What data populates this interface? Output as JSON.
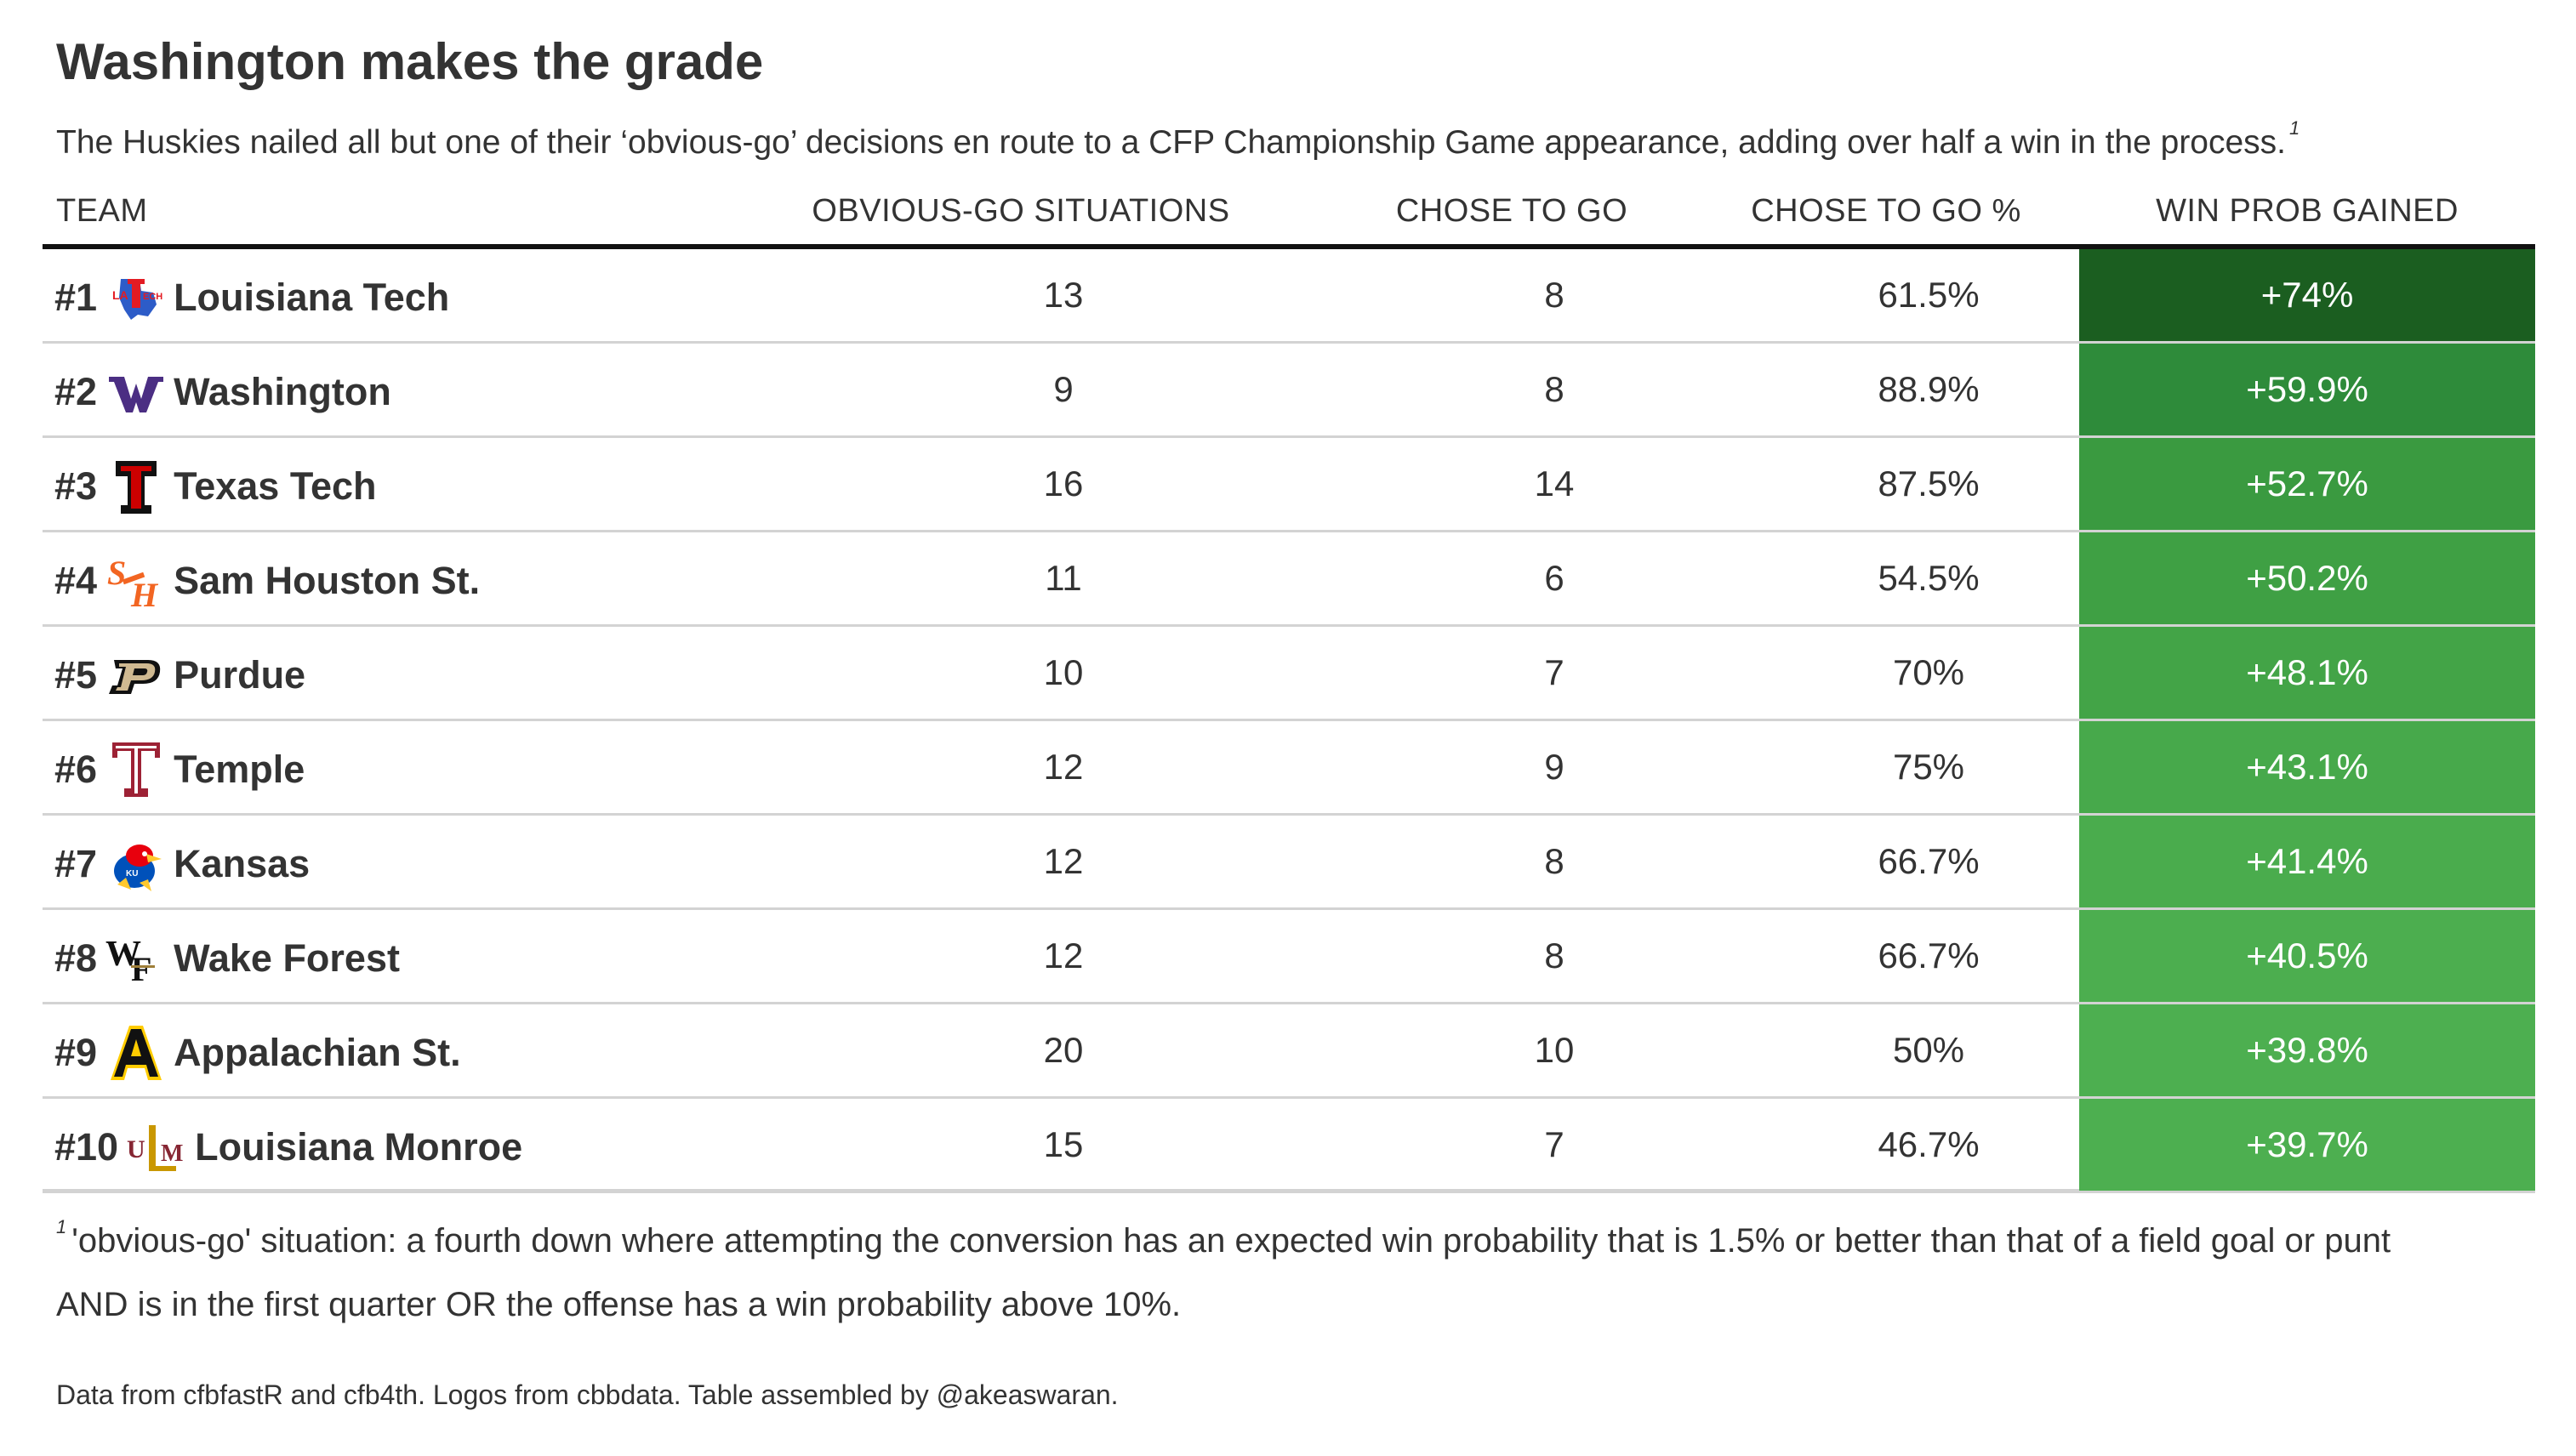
{
  "title": "Washington makes the grade",
  "subtitle": "The Huskies nailed all but one of their ‘obvious-go’ decisions en route to a CFP Championship Game appearance, adding over half a win in the process.",
  "subtitle_footnote_marker": "1",
  "columns": {
    "team": "TEAM",
    "situations": "OBVIOUS-GO SITUATIONS",
    "chose_to_go": "CHOSE TO GO",
    "chose_to_go_pct": "CHOSE TO GO %",
    "win_prob_gained": "WIN PROB GAINED"
  },
  "footnote": {
    "marker": "1",
    "line1": "'obvious-go' situation: a fourth down where attempting the conversion has an expected win probability that is 1.5% or better than that of a field goal or punt",
    "line2": "AND is in the first quarter OR the offense has a win probability above 10%."
  },
  "source": "Data from cfbfastR and cfb4th. Logos from cbbdata. Table assembled by @akeaswaran.",
  "chart_data": {
    "type": "table",
    "columns": [
      "TEAM",
      "OBVIOUS-GO SITUATIONS",
      "CHOSE TO GO",
      "CHOSE TO GO %",
      "WIN PROB GAINED"
    ],
    "rows": [
      {
        "rank": "#1",
        "team": "Louisiana Tech",
        "logo": "la-tech-logo",
        "situations": "13",
        "chose_to_go": "8",
        "chose_to_go_pct": "61.5%",
        "win_prob_gained": "+74%",
        "win_prob_value": 74.0,
        "color": "#1b5e20"
      },
      {
        "rank": "#2",
        "team": "Washington",
        "logo": "washington-logo",
        "situations": "9",
        "chose_to_go": "8",
        "chose_to_go_pct": "88.9%",
        "win_prob_gained": "+59.9%",
        "win_prob_value": 59.9,
        "color": "#2e8b3a"
      },
      {
        "rank": "#3",
        "team": "Texas Tech",
        "logo": "texas-tech-logo",
        "situations": "16",
        "chose_to_go": "14",
        "chose_to_go_pct": "87.5%",
        "win_prob_gained": "+52.7%",
        "win_prob_value": 52.7,
        "color": "#3a9a40"
      },
      {
        "rank": "#4",
        "team": "Sam Houston St.",
        "logo": "sam-houston-logo",
        "situations": "11",
        "chose_to_go": "6",
        "chose_to_go_pct": "54.5%",
        "win_prob_gained": "+50.2%",
        "win_prob_value": 50.2,
        "color": "#3fa044"
      },
      {
        "rank": "#5",
        "team": "Purdue",
        "logo": "purdue-logo",
        "situations": "10",
        "chose_to_go": "7",
        "chose_to_go_pct": "70%",
        "win_prob_gained": "+48.1%",
        "win_prob_value": 48.1,
        "color": "#43a447"
      },
      {
        "rank": "#6",
        "team": "Temple",
        "logo": "temple-logo",
        "situations": "12",
        "chose_to_go": "9",
        "chose_to_go_pct": "75%",
        "win_prob_gained": "+43.1%",
        "win_prob_value": 43.1,
        "color": "#47a94b"
      },
      {
        "rank": "#7",
        "team": "Kansas",
        "logo": "kansas-logo",
        "situations": "12",
        "chose_to_go": "8",
        "chose_to_go_pct": "66.7%",
        "win_prob_gained": "+41.4%",
        "win_prob_value": 41.4,
        "color": "#4aac4d"
      },
      {
        "rank": "#8",
        "team": "Wake Forest",
        "logo": "wake-forest-logo",
        "situations": "12",
        "chose_to_go": "8",
        "chose_to_go_pct": "66.7%",
        "win_prob_gained": "+40.5%",
        "win_prob_value": 40.5,
        "color": "#4cae4f"
      },
      {
        "rank": "#9",
        "team": "Appalachian St.",
        "logo": "app-state-logo",
        "situations": "20",
        "chose_to_go": "10",
        "chose_to_go_pct": "50%",
        "win_prob_gained": "+39.8%",
        "win_prob_value": 39.8,
        "color": "#4daf50"
      },
      {
        "rank": "#10",
        "team": "Louisiana Monroe",
        "logo": "ulm-logo",
        "situations": "15",
        "chose_to_go": "7",
        "chose_to_go_pct": "46.7%",
        "win_prob_gained": "+39.7%",
        "win_prob_value": 39.7,
        "color": "#4daf50"
      }
    ]
  }
}
